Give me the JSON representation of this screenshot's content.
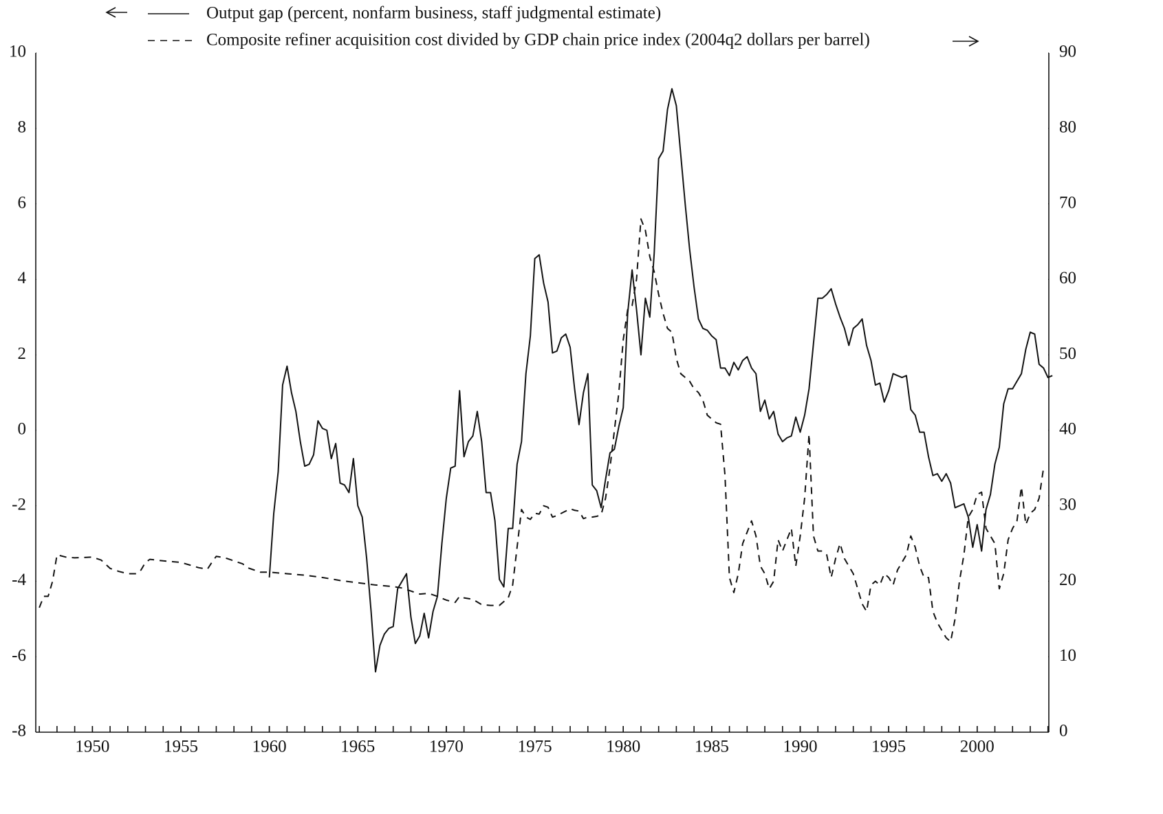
{
  "chart_data": {
    "type": "line",
    "xlim": [
      1946.8,
      2004.05
    ],
    "xticks": [
      1950,
      1955,
      1960,
      1965,
      1970,
      1975,
      1980,
      1985,
      1990,
      1995,
      2000
    ],
    "xminorticks": [
      1947,
      1948,
      1949,
      1950,
      1951,
      1952,
      1953,
      1954,
      1955,
      1956,
      1957,
      1958,
      1959,
      1960,
      1961,
      1962,
      1963,
      1964,
      1965,
      1966,
      1967,
      1968,
      1969,
      1970,
      1971,
      1972,
      1973,
      1974,
      1975,
      1976,
      1977,
      1978,
      1979,
      1980,
      1981,
      1982,
      1983,
      1984,
      1985,
      1986,
      1987,
      1988,
      1989,
      1990,
      1991,
      1992,
      1993,
      1994,
      1995,
      1996,
      1997,
      1998,
      1999,
      2000,
      2001,
      2002,
      2003,
      2004
    ],
    "ylim": [
      -8,
      10
    ],
    "yticks": [
      -8,
      -6,
      -4,
      -2,
      0,
      2,
      4,
      6,
      8,
      10
    ],
    "y2lim": [
      0,
      90
    ],
    "y2ticks": [
      0,
      10,
      20,
      30,
      40,
      50,
      60,
      70,
      80,
      90
    ],
    "series": [
      {
        "name": "Output gap (percent, nonfarm business, staff judgmental estimate)",
        "color": "#111111",
        "linestyle": "solid",
        "axis": "y",
        "x": [
          1960,
          1960.25,
          1960.5,
          1960.75,
          1961,
          1961.25,
          1961.5,
          1961.75,
          1962,
          1962.25,
          1962.5,
          1962.75,
          1963,
          1963.25,
          1963.5,
          1963.75,
          1964,
          1964.25,
          1964.5,
          1964.75,
          1965,
          1965.25,
          1965.5,
          1965.75,
          1966,
          1966.25,
          1966.5,
          1966.75,
          1967,
          1967.25,
          1967.5,
          1967.75,
          1968,
          1968.25,
          1968.5,
          1968.75,
          1969,
          1969.25,
          1969.5,
          1969.75,
          1970,
          1970.25,
          1970.5,
          1970.75,
          1971,
          1971.25,
          1971.5,
          1971.75,
          1972,
          1972.25,
          1972.5,
          1972.75,
          1973,
          1973.25,
          1973.5,
          1973.75,
          1974,
          1974.25,
          1974.5,
          1974.75,
          1975,
          1975.25,
          1975.5,
          1975.75,
          1976,
          1976.25,
          1976.5,
          1976.75,
          1977,
          1977.25,
          1977.5,
          1977.75,
          1978,
          1978.25,
          1978.5,
          1978.75,
          1979,
          1979.25,
          1979.5,
          1979.75,
          1980,
          1980.25,
          1980.5,
          1980.75,
          1981,
          1981.25,
          1981.5,
          1981.75,
          1982,
          1982.25,
          1982.5,
          1982.75,
          1983,
          1983.25,
          1983.5,
          1983.75,
          1984,
          1984.25,
          1984.5,
          1984.75,
          1985,
          1985.25,
          1985.5,
          1985.75,
          1986,
          1986.25,
          1986.5,
          1986.75,
          1987,
          1987.25,
          1987.5,
          1987.75,
          1988,
          1988.25,
          1988.5,
          1988.75,
          1989,
          1989.25,
          1989.5,
          1989.75,
          1990,
          1990.25,
          1990.5,
          1990.75,
          1991,
          1991.25,
          1991.5,
          1991.75,
          1992,
          1992.25,
          1992.5,
          1992.75,
          1993,
          1993.25,
          1993.5,
          1993.75,
          1994,
          1994.25,
          1994.5,
          1994.75,
          1995,
          1995.25,
          1995.5,
          1995.75,
          1996,
          1996.25,
          1996.5,
          1996.75,
          1997,
          1997.25,
          1997.5,
          1997.75,
          1998,
          1998.25,
          1998.5,
          1998.75,
          1999,
          1999.25,
          1999.5,
          1999.75,
          2000,
          2000.25,
          2000.5,
          2000.75,
          2001,
          2001.25,
          2001.5,
          2001.75,
          2002,
          2002.25,
          2002.5,
          2002.75,
          2003,
          2003.25,
          2003.5,
          2003.75,
          2004,
          2004.25
        ],
        "values": [
          -3.9,
          -2.2,
          -1.1,
          1.2,
          1.7,
          1.0,
          0.5,
          -0.3,
          -0.95,
          -0.9,
          -0.65,
          0.25,
          0.05,
          0.0,
          -0.75,
          -0.35,
          -1.4,
          -1.45,
          -1.65,
          -0.75,
          -2.0,
          -2.3,
          -3.4,
          -4.8,
          -6.4,
          -5.7,
          -5.4,
          -5.25,
          -5.2,
          -4.2,
          -4.0,
          -3.8,
          -4.95,
          -5.65,
          -5.45,
          -4.85,
          -5.5,
          -4.8,
          -4.4,
          -3.0,
          -1.8,
          -1.0,
          -0.95,
          1.05,
          -0.7,
          -0.3,
          -0.15,
          0.5,
          -0.3,
          -1.65,
          -1.65,
          -2.4,
          -3.95,
          -4.15,
          -2.6,
          -2.6,
          -0.9,
          -0.3,
          1.5,
          2.5,
          4.55,
          4.65,
          3.9,
          3.4,
          2.05,
          2.1,
          2.45,
          2.55,
          2.2,
          1.1,
          0.15,
          1.0,
          1.5,
          -1.45,
          -1.6,
          -2.05,
          -1.3,
          -0.6,
          -0.5,
          0.1,
          0.6,
          3.1,
          4.25,
          3.2,
          2.0,
          3.5,
          3.0,
          4.7,
          7.2,
          7.4,
          8.5,
          9.05,
          8.6,
          7.3,
          6.0,
          4.8,
          3.8,
          2.95,
          2.7,
          2.65,
          2.5,
          2.4,
          1.65,
          1.65,
          1.45,
          1.8,
          1.6,
          1.85,
          1.95,
          1.65,
          1.5,
          0.5,
          0.8,
          0.3,
          0.5,
          -0.1,
          -0.3,
          -0.2,
          -0.15,
          0.35,
          -0.05,
          0.4,
          1.1,
          2.3,
          3.5,
          3.5,
          3.6,
          3.75,
          3.35,
          3.0,
          2.7,
          2.25,
          2.7,
          2.8,
          2.95,
          2.25,
          1.85,
          1.2,
          1.25,
          0.75,
          1.05,
          1.5,
          1.45,
          1.4,
          1.45,
          0.55,
          0.4,
          -0.05,
          -0.05,
          -0.7,
          -1.2,
          -1.15,
          -1.35,
          -1.15,
          -1.4,
          -2.05,
          -2.0,
          -1.95,
          -2.3,
          -3.1,
          -2.5,
          -3.2,
          -2.1,
          -1.7,
          -0.9,
          -0.45,
          0.7,
          1.1,
          1.1,
          1.3,
          1.5,
          2.15,
          2.6,
          2.55,
          1.75,
          1.65,
          1.4,
          1.45
        ]
      },
      {
        "name": "Composite refiner acquisition cost divided by GDP chain price index (2004q2 dollars per barrel)",
        "color": "#111111",
        "linestyle": "dashed",
        "axis": "y2",
        "x": [
          1947,
          1947.25,
          1947.5,
          1947.75,
          1948,
          1948.5,
          1949,
          1950,
          1950.5,
          1951,
          1951.5,
          1952,
          1952.5,
          1952.75,
          1953,
          1953.25,
          1954,
          1955,
          1956,
          1956.5,
          1956.75,
          1957,
          1957.5,
          1958,
          1958.5,
          1958.75,
          1959,
          1959.5,
          1960,
          1961,
          1962,
          1963,
          1964,
          1965,
          1966,
          1967,
          1967.5,
          1968,
          1968.5,
          1969,
          1969.5,
          1970,
          1970.5,
          1970.75,
          1971,
          1971.5,
          1972,
          1972.5,
          1973,
          1973.5,
          1973.75,
          1974,
          1974.25,
          1974.5,
          1974.75,
          1975,
          1975.25,
          1975.5,
          1975.75,
          1976,
          1976.25,
          1976.5,
          1976.75,
          1977,
          1977.25,
          1977.5,
          1977.75,
          1978,
          1978.25,
          1978.5,
          1978.75,
          1979,
          1979.25,
          1979.5,
          1979.75,
          1980,
          1980.25,
          1980.5,
          1980.75,
          1981,
          1981.25,
          1981.5,
          1981.75,
          1982,
          1982.25,
          1982.5,
          1982.75,
          1983,
          1983.25,
          1983.5,
          1983.75,
          1984,
          1984.25,
          1984.5,
          1984.75,
          1985,
          1985.25,
          1985.5,
          1985.75,
          1986,
          1986.25,
          1986.5,
          1986.75,
          1987,
          1987.25,
          1987.5,
          1987.75,
          1988,
          1988.25,
          1988.5,
          1988.75,
          1989,
          1989.25,
          1989.5,
          1989.75,
          1990,
          1990.25,
          1990.5,
          1990.75,
          1991,
          1991.25,
          1991.5,
          1991.75,
          1992,
          1992.25,
          1992.5,
          1992.75,
          1993,
          1993.25,
          1993.5,
          1993.75,
          1994,
          1994.25,
          1994.5,
          1994.75,
          1995,
          1995.25,
          1995.5,
          1995.75,
          1996,
          1996.25,
          1996.5,
          1996.75,
          1997,
          1997.25,
          1997.5,
          1997.75,
          1998,
          1998.25,
          1998.5,
          1998.75,
          1999,
          1999.25,
          1999.5,
          1999.75,
          2000,
          2000.25,
          2000.5,
          2000.75,
          2001,
          2001.25,
          2001.5,
          2001.75,
          2002,
          2002.25,
          2002.5,
          2002.75,
          2003,
          2003.25,
          2003.5,
          2003.75
        ],
        "values": [
          16.5,
          18,
          18,
          20,
          23.5,
          23.2,
          23.1,
          23.2,
          22.8,
          21.7,
          21.3,
          21.0,
          21.0,
          21.5,
          22.5,
          22.9,
          22.7,
          22.5,
          21.8,
          21.6,
          22.5,
          23.3,
          23.1,
          22.7,
          22.3,
          21.8,
          21.6,
          21.2,
          21.2,
          21.0,
          20.8,
          20.5,
          20.1,
          19.8,
          19.5,
          19.3,
          19.1,
          18.7,
          18.3,
          18.4,
          18.0,
          17.5,
          17.2,
          18.0,
          17.8,
          17.6,
          16.9,
          16.8,
          16.8,
          17.8,
          19.5,
          24.5,
          29.5,
          28.5,
          28.2,
          29.0,
          28.9,
          30.0,
          29.8,
          28.5,
          28.7,
          29.0,
          29.3,
          29.6,
          29.4,
          29.3,
          28.3,
          28.5,
          28.5,
          28.6,
          28.8,
          31,
          35,
          40,
          45,
          52,
          56,
          56.5,
          60,
          68,
          66.5,
          63,
          61,
          58,
          55.5,
          53.5,
          53,
          49.5,
          47.5,
          47,
          46.5,
          45.5,
          45,
          44,
          42,
          41.5,
          41,
          40.8,
          34,
          20.5,
          18.5,
          21,
          25,
          26.5,
          28,
          26,
          22,
          21,
          19,
          20,
          25.5,
          24,
          25.5,
          27,
          22,
          26,
          31,
          39.5,
          26,
          24,
          24,
          23.5,
          20.5,
          23,
          25,
          23,
          22,
          21,
          19,
          17,
          16,
          19.5,
          20,
          19.5,
          21,
          20.5,
          19.5,
          21.5,
          22.5,
          23.5,
          26,
          24.5,
          22,
          20.5,
          20.5,
          16,
          14.5,
          13.5,
          12.5,
          12,
          15,
          20,
          23.5,
          28.5,
          29.5,
          31.5,
          31.8,
          27,
          26,
          25,
          19,
          21,
          25.5,
          27,
          28,
          32.5,
          27.5,
          29,
          29.5,
          31,
          35
        ]
      }
    ]
  }
}
